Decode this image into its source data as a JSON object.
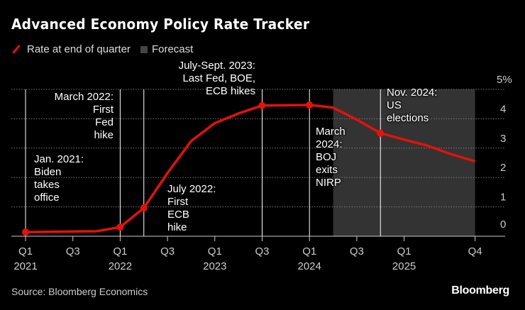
{
  "title": "Advanced Economy Policy Rate Tracker",
  "legend": {
    "line_label": "Rate at end of quarter",
    "forecast_label": "Forecast"
  },
  "source": "Source: Bloomberg Economics",
  "logo": "Bloomberg",
  "colors": {
    "line": "#e3120b",
    "forecast_shade": "#333333",
    "background": "#000000"
  },
  "chart_data": {
    "type": "line",
    "title": "Advanced Economy Policy Rate Tracker",
    "ylim": [
      0,
      5
    ],
    "yticks": [
      "0",
      "1",
      "2",
      "3",
      "4",
      "5%"
    ],
    "grid": true,
    "y_axis_side": "right",
    "legend_placement": "top-left",
    "x": [
      "Q1 2021",
      "Q2 2021",
      "Q3 2021",
      "Q4 2021",
      "Q1 2022",
      "Q2 2022",
      "Q3 2022",
      "Q4 2022",
      "Q1 2023",
      "Q2 2023",
      "Q3 2023",
      "Q4 2023",
      "Q1 2024",
      "Q2 2024",
      "Q3 2024",
      "Q4 2024",
      "Q1 2025",
      "Q2 2025",
      "Q3 2025",
      "Q4 2025"
    ],
    "xticks": [
      {
        "label": "Q1",
        "year": "2021",
        "index": 0
      },
      {
        "label": "Q3",
        "year": "",
        "index": 2
      },
      {
        "label": "Q1",
        "year": "2022",
        "index": 4
      },
      {
        "label": "Q3",
        "year": "",
        "index": 6
      },
      {
        "label": "Q1",
        "year": "2023",
        "index": 8
      },
      {
        "label": "Q3",
        "year": "",
        "index": 10
      },
      {
        "label": "Q1",
        "year": "2024",
        "index": 12
      },
      {
        "label": "Q3",
        "year": "",
        "index": 14
      },
      {
        "label": "Q1",
        "year": "2025",
        "index": 16
      },
      {
        "label": "Q4",
        "year": "",
        "index": 19
      }
    ],
    "series": [
      {
        "name": "Rate at end of quarter",
        "values": [
          0.14,
          0.15,
          0.16,
          0.17,
          0.31,
          0.96,
          2.15,
          3.24,
          3.85,
          4.18,
          4.45,
          4.46,
          4.47,
          4.38,
          3.97,
          3.51,
          3.29,
          3.08,
          2.79,
          2.55
        ],
        "markers_at": [
          0,
          4,
          5,
          10,
          12,
          15
        ]
      }
    ],
    "forecast_range": [
      "Q2 2024",
      "Q4 2025"
    ],
    "event_lines_at": [
      0,
      4,
      5,
      10,
      12,
      15
    ],
    "annotations": [
      {
        "text": "Jan. 2021:\nBiden\ntakes\noffice"
      },
      {
        "text": "March 2022:\nFirst\nFed\nhike"
      },
      {
        "text": "July 2022:\nFirst\nECB\nhike"
      },
      {
        "text": "July-Sept. 2023:\nLast Fed, BOE,\nECB hikes"
      },
      {
        "text": "March\n2024:\nBOJ\nexits\nNIRP"
      },
      {
        "text": "Nov. 2024:\nUS\nelections"
      }
    ]
  }
}
